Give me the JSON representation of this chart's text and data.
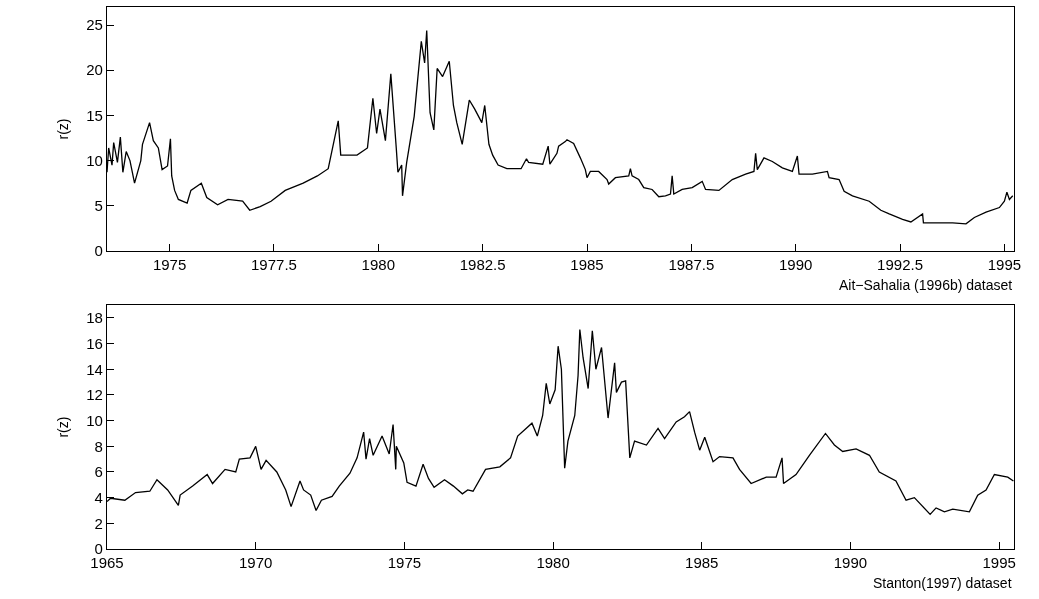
{
  "chart_data": [
    {
      "type": "line",
      "ylabel": "r(z)",
      "annotations": [
        "Ait−Sahalia (1996b) dataset"
      ],
      "xlim": [
        1973.5,
        1995.23
      ],
      "xticks": [
        1975,
        1977.5,
        1980,
        1982.5,
        1985,
        1987.5,
        1990,
        1992.5,
        1995
      ],
      "ylim": [
        0,
        27
      ],
      "yticks": [
        0,
        5,
        10,
        15,
        20,
        25
      ],
      "series": [
        {
          "color": "#000000",
          "x": [
            1973.5,
            1973.54,
            1973.62,
            1973.66,
            1973.75,
            1973.82,
            1973.88,
            1973.96,
            1974.05,
            1974.16,
            1974.31,
            1974.35,
            1974.52,
            1974.61,
            1974.73,
            1974.82,
            1974.95,
            1975.02,
            1975.05,
            1975.12,
            1975.21,
            1975.42,
            1975.51,
            1975.76,
            1975.89,
            1976.15,
            1976.4,
            1976.75,
            1976.92,
            1977.17,
            1977.43,
            1977.77,
            1978.2,
            1978.54,
            1978.8,
            1979.04,
            1979.1,
            1979.49,
            1979.74,
            1979.87,
            1979.96,
            1980.04,
            1980.17,
            1980.3,
            1980.43,
            1980.47,
            1980.56,
            1980.58,
            1980.68,
            1980.86,
            1981.03,
            1981.11,
            1981.16,
            1981.24,
            1981.33,
            1981.41,
            1981.54,
            1981.7,
            1981.8,
            1981.88,
            1982.01,
            1982.18,
            1982.31,
            1982.48,
            1982.55,
            1982.65,
            1982.74,
            1982.87,
            1983.08,
            1983.42,
            1983.55,
            1983.6,
            1983.94,
            1984.07,
            1984.11,
            1984.28,
            1984.32,
            1984.48,
            1984.52,
            1984.68,
            1984.84,
            1984.96,
            1985.0,
            1985.08,
            1985.28,
            1985.48,
            1985.52,
            1985.68,
            1986.0,
            1986.04,
            1986.08,
            1986.24,
            1986.36,
            1986.56,
            1986.72,
            1986.88,
            1987.0,
            1987.04,
            1987.08,
            1987.28,
            1987.52,
            1987.76,
            1987.84,
            1988.16,
            1988.48,
            1988.8,
            1989.0,
            1989.04,
            1989.08,
            1989.24,
            1989.44,
            1989.68,
            1989.92,
            1990.04,
            1990.08,
            1990.4,
            1990.76,
            1990.8,
            1991.04,
            1991.16,
            1991.36,
            1991.76,
            1992.04,
            1992.24,
            1992.56,
            1992.76,
            1993.04,
            1993.06,
            1993.44,
            1993.76,
            1994.08,
            1994.28,
            1994.56,
            1994.88,
            1995.0,
            1995.06,
            1995.12,
            1995.2
          ],
          "values": [
            8.7,
            11.4,
            9.5,
            12,
            9.8,
            12.6,
            8.7,
            11,
            10,
            7.5,
            10,
            11.8,
            14.2,
            12.2,
            11.4,
            9,
            9.4,
            12.4,
            8.3,
            6.7,
            5.7,
            5.3,
            6.7,
            7.5,
            5.9,
            5.1,
            5.7,
            5.5,
            4.5,
            4.9,
            5.5,
            6.7,
            7.5,
            8.3,
            9.1,
            14.4,
            10.6,
            10.6,
            11.4,
            16.9,
            13,
            15.7,
            12.2,
            19.6,
            11.4,
            8.7,
            9.5,
            6.1,
            9.8,
            14.9,
            23.2,
            20.8,
            24.4,
            15.3,
            13.4,
            20.2,
            19.3,
            21,
            16.1,
            14.2,
            11.8,
            16.7,
            15.7,
            14.2,
            16.1,
            11.8,
            10.6,
            9.5,
            9.1,
            9.1,
            10.2,
            9.8,
            9.6,
            11.6,
            9.6,
            10.8,
            11.6,
            12.1,
            12.3,
            11.9,
            10.3,
            9,
            8.1,
            8.8,
            8.8,
            7.9,
            7.4,
            8.1,
            8.3,
            9.1,
            8.3,
            7.9,
            7,
            6.8,
            6,
            6.1,
            6.3,
            8.3,
            6.3,
            6.8,
            7,
            7.7,
            6.8,
            6.7,
            7.9,
            8.5,
            8.8,
            10.8,
            9,
            10.3,
            9.9,
            9.2,
            8.8,
            10.5,
            8.5,
            8.5,
            8.8,
            8.1,
            7.9,
            6.6,
            6.1,
            5.5,
            4.5,
            4.1,
            3.5,
            3.2,
            4.1,
            3.1,
            3.1,
            3.1,
            3,
            3.7,
            4.3,
            4.8,
            5.5,
            6.5,
            5.7,
            6.1
          ]
        }
      ]
    },
    {
      "type": "line",
      "ylabel": "r(z)",
      "annotations": [
        "Stanton(1997) dataset"
      ],
      "xlim": [
        1965,
        1995.5
      ],
      "xticks": [
        1965,
        1970,
        1975,
        1980,
        1985,
        1990,
        1995
      ],
      "ylim": [
        0,
        19
      ],
      "yticks": [
        0,
        2,
        4,
        6,
        8,
        10,
        12,
        14,
        16,
        18
      ],
      "series": [
        {
          "color": "#000000",
          "x": [
            1965,
            1965.12,
            1965.6,
            1965.96,
            1966.44,
            1966.68,
            1967.04,
            1967.4,
            1967.46,
            1967.88,
            1968.37,
            1968.55,
            1968.97,
            1969.33,
            1969.45,
            1969.81,
            1970.0,
            1970.18,
            1970.35,
            1970.71,
            1971.01,
            1971.19,
            1971.49,
            1971.61,
            1971.85,
            1972.03,
            1972.21,
            1972.57,
            1972.81,
            1973.17,
            1973.41,
            1973.63,
            1973.71,
            1973.83,
            1973.95,
            1974.25,
            1974.49,
            1974.62,
            1974.71,
            1974.73,
            1974.98,
            1975.09,
            1975.39,
            1975.63,
            1975.81,
            1976.0,
            1976.35,
            1976.65,
            1976.95,
            1977.13,
            1977.31,
            1977.73,
            1978.21,
            1978.57,
            1978.81,
            1979.29,
            1979.47,
            1979.65,
            1979.77,
            1979.89,
            1980.07,
            1980.17,
            1980.28,
            1980.39,
            1980.5,
            1980.73,
            1980.84,
            1980.9,
            1981.01,
            1981.18,
            1981.32,
            1981.44,
            1981.63,
            1981.85,
            1982.07,
            1982.13,
            1982.3,
            1982.44,
            1982.58,
            1982.74,
            1983.14,
            1983.53,
            1983.75,
            1984.14,
            1984.42,
            1984.59,
            1984.76,
            1984.93,
            1985.1,
            1985.38,
            1985.6,
            1986.05,
            1986.27,
            1986.66,
            1987.17,
            1987.5,
            1987.7,
            1987.75,
            1988.17,
            1988.62,
            1989.16,
            1989.46,
            1989.74,
            1990.19,
            1990.64,
            1990.97,
            1991.53,
            1991.87,
            1992.15,
            1992.68,
            1992.88,
            1993.16,
            1993.44,
            1994.0,
            1994.28,
            1994.56,
            1994.84,
            1995.29,
            1995.48
          ],
          "values": [
            3.7,
            3.95,
            3.8,
            4.4,
            4.5,
            5.4,
            4.6,
            3.4,
            4.2,
            4.9,
            5.8,
            5.1,
            6.2,
            6,
            7,
            7.1,
            8,
            6.2,
            6.9,
            6,
            4.6,
            3.3,
            5.3,
            4.6,
            4.2,
            3,
            3.8,
            4.1,
            4.9,
            5.9,
            7.1,
            9.1,
            7,
            8.6,
            7.3,
            8.8,
            7.4,
            9.7,
            6.2,
            8,
            6.7,
            5.2,
            4.9,
            6.6,
            5.5,
            4.8,
            5.4,
            4.9,
            4.3,
            4.6,
            4.5,
            6.2,
            6.4,
            7.1,
            8.8,
            9.8,
            8.8,
            10.4,
            12.9,
            11.3,
            12.4,
            15.8,
            14,
            6.3,
            8.4,
            10.4,
            13.5,
            17.1,
            14.9,
            12.5,
            17,
            14,
            15.7,
            10.2,
            14.5,
            12.2,
            13,
            13.1,
            7.1,
            8.4,
            8.1,
            9.4,
            8.6,
            9.9,
            10.3,
            10.7,
            9.1,
            7.7,
            8.7,
            6.8,
            7.2,
            7.1,
            6.2,
            5.1,
            5.6,
            5.6,
            7.1,
            5.1,
            5.8,
            7.3,
            9,
            8.1,
            7.6,
            7.8,
            7.3,
            6,
            5.3,
            3.8,
            4,
            2.7,
            3.2,
            2.9,
            3.1,
            2.9,
            4.2,
            4.6,
            5.8,
            5.6,
            5.3
          ]
        }
      ]
    }
  ]
}
